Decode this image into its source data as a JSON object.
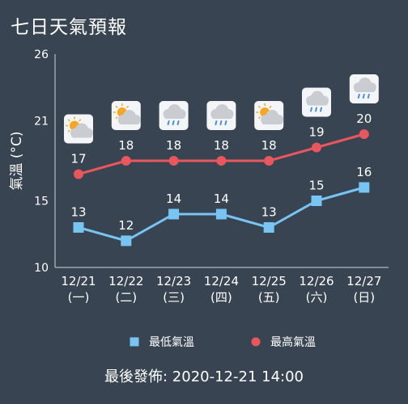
{
  "title": "七日天氣預報",
  "footer": "最後發佈: 2020-12-21 14:00",
  "chart_data": {
    "type": "line",
    "ylabel": "氣溫 (°C)",
    "ylim": [
      10,
      26
    ],
    "yticks": [
      10,
      15,
      21,
      26
    ],
    "grid": false,
    "legend_position": "bottom",
    "categories": [
      "12/21",
      "12/22",
      "12/23",
      "12/24",
      "12/25",
      "12/26",
      "12/27"
    ],
    "weekdays": [
      "(一)",
      "(二)",
      "(三)",
      "(四)",
      "(五)",
      "(六)",
      "(日)"
    ],
    "icons": [
      "partly-cloudy-sun-icon",
      "partly-cloudy-sun-icon",
      "cloud-rain-icon",
      "cloud-rain-icon",
      "partly-cloudy-sun-icon",
      "cloud-rain-icon",
      "cloud-rain-icon"
    ],
    "series": [
      {
        "name": "最低氣溫",
        "values": [
          13,
          12,
          14,
          14,
          13,
          15,
          16
        ],
        "color": "#78C4F2",
        "marker": "square"
      },
      {
        "name": "最高氣溫",
        "values": [
          17,
          18,
          18,
          18,
          18,
          19,
          20
        ],
        "color": "#E8575D",
        "marker": "circle"
      }
    ]
  }
}
